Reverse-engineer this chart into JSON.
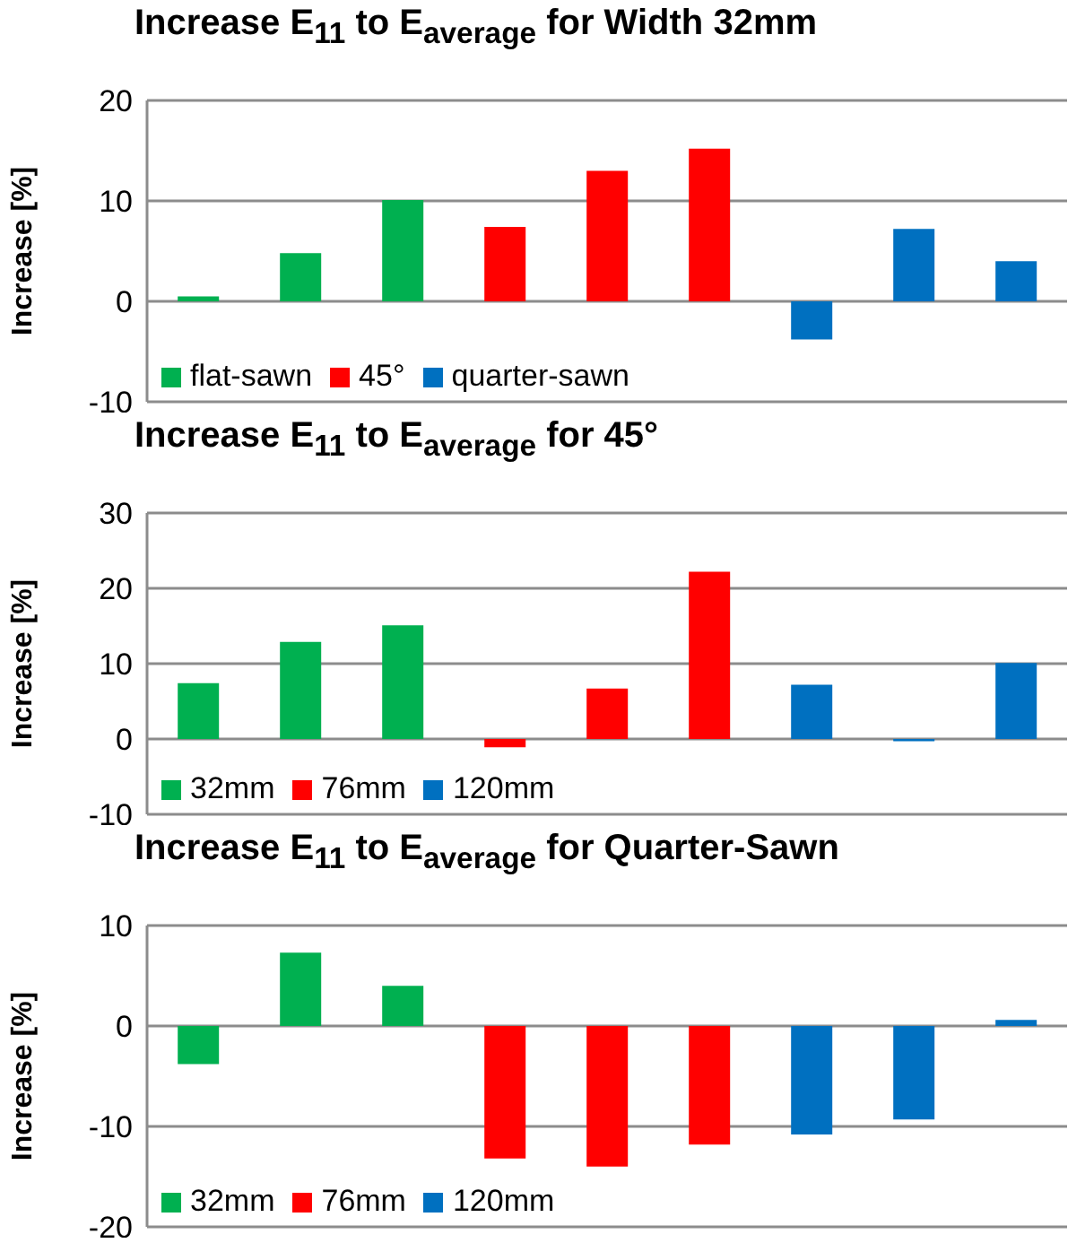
{
  "chart_data": [
    {
      "type": "bar",
      "title": "Increase E$_{11}$ to E$_{average}$ for Width 32mm",
      "ylabel": "Increase [%]",
      "categories": [
        null,
        null,
        null,
        null,
        null,
        null,
        null,
        null,
        null
      ],
      "series": [
        {
          "name": "flat-sawn",
          "color": "#00b050",
          "values": [
            0.5,
            4.8,
            10.1,
            null,
            null,
            null,
            null,
            null,
            null
          ]
        },
        {
          "name": "45°",
          "color": "#ff0000",
          "values": [
            null,
            null,
            null,
            7.4,
            13.0,
            15.2,
            null,
            null,
            null
          ]
        },
        {
          "name": "quarter-sawn",
          "color": "#0070c0",
          "values": [
            null,
            null,
            null,
            null,
            null,
            null,
            -3.8,
            7.2,
            4.0
          ]
        }
      ],
      "ylim": [
        -10,
        20
      ],
      "yticks": [
        -10,
        0,
        10,
        20
      ],
      "grid": "y",
      "legend": "bottom left",
      "tick_labels": "y"
    },
    {
      "type": "bar",
      "title": "Increase E$_{11}$ to E$_{average}$ for 45°",
      "ylabel": "Increase [%]",
      "categories": [
        null,
        null,
        null,
        null,
        null,
        null,
        null,
        null,
        null
      ],
      "series": [
        {
          "name": "32mm",
          "color": "#00b050",
          "values": [
            7.4,
            12.9,
            15.1,
            null,
            null,
            null,
            null,
            null,
            null
          ]
        },
        {
          "name": "76mm",
          "color": "#ff0000",
          "values": [
            null,
            null,
            null,
            -1.1,
            6.7,
            22.2,
            null,
            null,
            null
          ]
        },
        {
          "name": "120mm",
          "color": "#0070c0",
          "values": [
            null,
            null,
            null,
            null,
            null,
            null,
            7.2,
            -0.3,
            10.1
          ]
        }
      ],
      "ylim": [
        -10,
        30
      ],
      "yticks": [
        -10,
        0,
        10,
        20,
        30
      ],
      "grid": "y",
      "legend": "bottom left",
      "tick_labels": "y"
    },
    {
      "type": "bar",
      "title": "Increase E$_{11}$ to E$_{average}$ for Quarter-Sawn",
      "ylabel": "Increase [%]",
      "categories": [
        null,
        null,
        null,
        null,
        null,
        null,
        null,
        null,
        null
      ],
      "series": [
        {
          "name": "32mm",
          "color": "#00b050",
          "values": [
            -3.8,
            7.3,
            4.0,
            null,
            null,
            null,
            null,
            null,
            null
          ]
        },
        {
          "name": "76mm",
          "color": "#ff0000",
          "values": [
            null,
            null,
            null,
            -13.2,
            -14.0,
            -11.8,
            null,
            null,
            null
          ]
        },
        {
          "name": "120mm",
          "color": "#0070c0",
          "values": [
            null,
            null,
            null,
            null,
            null,
            null,
            -10.8,
            -9.3,
            0.6
          ]
        }
      ],
      "ylim": [
        -20,
        10
      ],
      "yticks": [
        -20,
        -10,
        0,
        10
      ],
      "grid": "y",
      "legend": "bottom left",
      "tick_labels": "y"
    }
  ]
}
